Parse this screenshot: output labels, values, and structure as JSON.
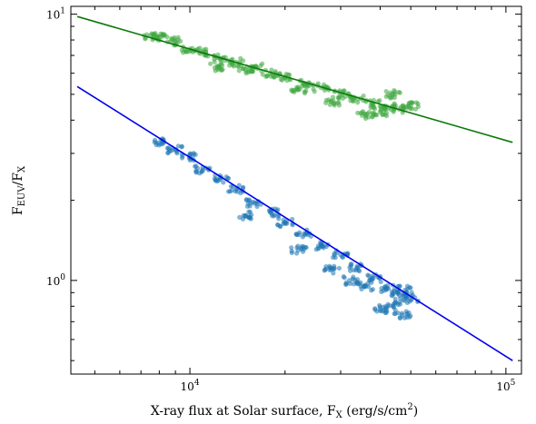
{
  "chart_data": {
    "type": "scatter",
    "title": "",
    "x_scale": "log",
    "y_scale": "log",
    "xlim": [
      4200,
      112000
    ],
    "ylim": [
      0.445,
      10.7
    ],
    "xlabel": {
      "main": "X-ray flux at Solar surface, F",
      "sub": "X",
      "after": " (erg/s/cm",
      "sup": "2",
      "end": ")"
    },
    "ylabel": {
      "f1": "F",
      "sub1": "EUV",
      "slash": "/F",
      "sub2": "X"
    },
    "x_ticks": [
      {
        "base": "10",
        "exp": "4",
        "value": 10000
      },
      {
        "base": "10",
        "exp": "5",
        "value": 100000
      }
    ],
    "y_ticks": [
      {
        "base": "10",
        "exp": "0",
        "value": 1
      },
      {
        "base": "10",
        "exp": "1",
        "value": 10
      }
    ],
    "grid": false,
    "legend": "none",
    "series": [
      {
        "kind": "scatter",
        "color": "#3fa83f",
        "opacity": 0.55,
        "points": [
          [
            7500,
            8.3
          ],
          [
            8000,
            8.2
          ],
          [
            9000,
            7.9
          ],
          [
            10000,
            7.4
          ],
          [
            11000,
            7.2
          ],
          [
            12500,
            6.8
          ],
          [
            14000,
            6.6
          ],
          [
            16000,
            6.3
          ],
          [
            18000,
            6.0
          ],
          [
            20000,
            5.8
          ],
          [
            23000,
            5.5
          ],
          [
            26000,
            5.3
          ],
          [
            30000,
            5.0
          ],
          [
            34000,
            4.8
          ],
          [
            38000,
            4.6
          ],
          [
            42000,
            4.5
          ],
          [
            46000,
            4.4
          ],
          [
            50000,
            4.5
          ],
          [
            44000,
            5.0
          ],
          [
            40000,
            4.3
          ],
          [
            36000,
            4.2
          ],
          [
            28000,
            4.7
          ],
          [
            22000,
            5.2
          ],
          [
            15000,
            6.2
          ],
          [
            12000,
            6.3
          ]
        ]
      },
      {
        "kind": "scatter",
        "color": "#1f77b4",
        "opacity": 0.55,
        "points": [
          [
            8200,
            3.3
          ],
          [
            9000,
            3.1
          ],
          [
            10000,
            2.9
          ],
          [
            11000,
            2.6
          ],
          [
            12500,
            2.4
          ],
          [
            14000,
            2.2
          ],
          [
            16000,
            1.95
          ],
          [
            18000,
            1.8
          ],
          [
            20000,
            1.65
          ],
          [
            23000,
            1.5
          ],
          [
            26000,
            1.35
          ],
          [
            30000,
            1.25
          ],
          [
            34000,
            1.12
          ],
          [
            38000,
            1.02
          ],
          [
            42000,
            0.93
          ],
          [
            46000,
            0.88
          ],
          [
            50000,
            0.85
          ],
          [
            44000,
            0.8
          ],
          [
            40000,
            0.78
          ],
          [
            48000,
            0.92
          ],
          [
            36000,
            0.95
          ],
          [
            32000,
            1.0
          ],
          [
            28000,
            1.1
          ],
          [
            22000,
            1.3
          ],
          [
            15000,
            1.75
          ],
          [
            47000,
            0.74
          ]
        ]
      },
      {
        "kind": "line",
        "name": "",
        "color": "#0a7a0a",
        "x": [
          4400,
          105000
        ],
        "y": [
          9.8,
          3.3
        ]
      },
      {
        "kind": "line",
        "name": "",
        "color": "#0000ee",
        "x": [
          4400,
          105000
        ],
        "y": [
          5.35,
          0.5
        ]
      }
    ]
  }
}
